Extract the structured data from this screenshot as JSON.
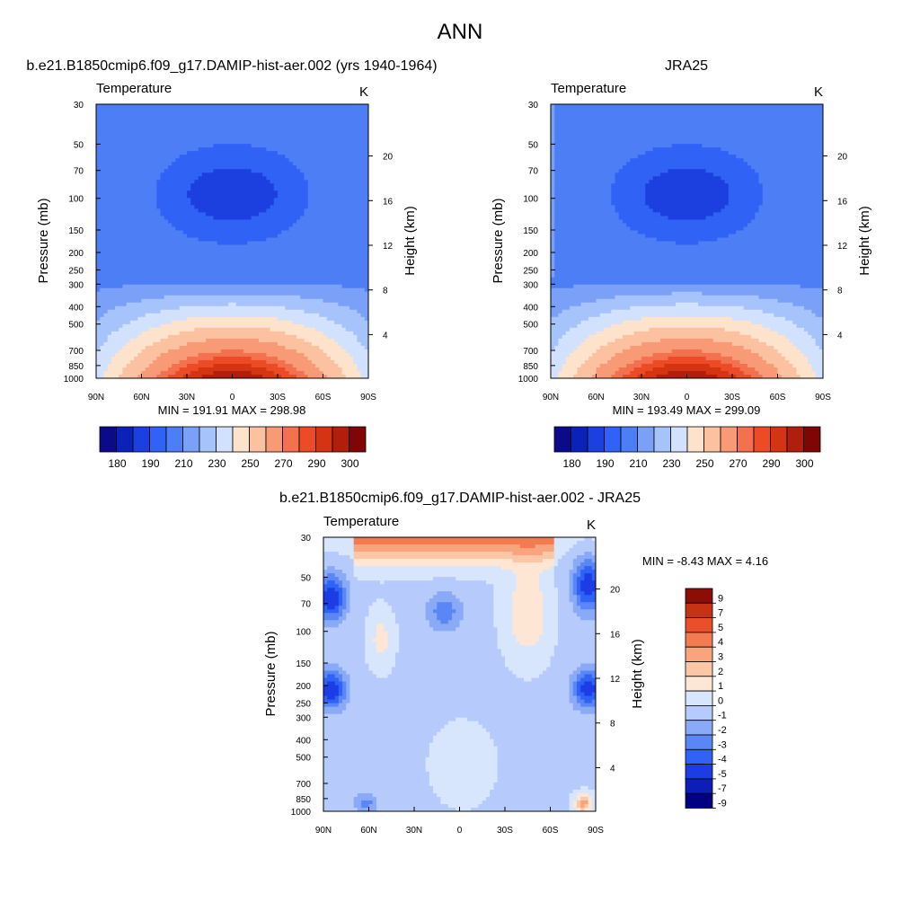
{
  "figure": {
    "title": "ANN"
  },
  "colors": {
    "abs_palette": [
      "#0a0a8a",
      "#0b22b8",
      "#1c3fe0",
      "#2f62f5",
      "#4d7ef5",
      "#7aa0f8",
      "#a7c3fb",
      "#d2e1fd",
      "#fde2cc",
      "#fbc1a1",
      "#f89a76",
      "#f47150",
      "#ec4b26",
      "#d43412",
      "#b01f0b",
      "#800606"
    ],
    "diff_palette": [
      "#000080",
      "#0d1db8",
      "#1c3de6",
      "#2f62f5",
      "#5a86f6",
      "#8aaaf8",
      "#b6cbfb",
      "#d8e6fd",
      "#fde6d4",
      "#fcc7a6",
      "#f8a47d",
      "#f27b52",
      "#e8502a",
      "#c63214",
      "#8c0c06"
    ]
  },
  "chart_data": [
    {
      "type": "heatmap",
      "title": "b.e21.B1850cmip6.f09_g17.DAMIP-hist-aer.002 (yrs 1940-1964)",
      "subtitle_left": "Temperature",
      "subtitle_right": "K",
      "xlabel": "",
      "ylabel": "Pressure (mb)",
      "ylabel_right": "Height (km)",
      "x_ticks": [
        "90N",
        "60N",
        "30N",
        "0",
        "30S",
        "60S",
        "90S"
      ],
      "y_ticks": [
        30,
        50,
        70,
        100,
        150,
        200,
        250,
        300,
        400,
        500,
        700,
        850,
        1000
      ],
      "y_scale": "log",
      "ylim": [
        1000,
        30
      ],
      "height_ticks": [
        4,
        8,
        12,
        16,
        20
      ],
      "min_max": "MIN = 191.91  MAX = 298.98",
      "colorbar": {
        "orientation": "horizontal",
        "labels": [
          "180",
          "190",
          "210",
          "230",
          "250",
          "270",
          "290",
          "300"
        ]
      }
    },
    {
      "type": "heatmap",
      "title": "JRA25",
      "subtitle_left": "Temperature",
      "subtitle_right": "K",
      "xlabel": "",
      "ylabel": "Pressure (mb)",
      "ylabel_right": "Height (km)",
      "x_ticks": [
        "90N",
        "60N",
        "30N",
        "0",
        "30S",
        "60S",
        "90S"
      ],
      "y_ticks": [
        30,
        50,
        70,
        100,
        150,
        200,
        250,
        300,
        400,
        500,
        700,
        850,
        1000
      ],
      "y_scale": "log",
      "ylim": [
        1000,
        30
      ],
      "height_ticks": [
        4,
        8,
        12,
        16,
        20
      ],
      "min_max": "MIN = 193.49  MAX = 299.09",
      "colorbar": {
        "orientation": "horizontal",
        "labels": [
          "180",
          "190",
          "210",
          "230",
          "250",
          "270",
          "290",
          "300"
        ]
      }
    },
    {
      "type": "heatmap",
      "title": "b.e21.B1850cmip6.f09_g17.DAMIP-hist-aer.002 - JRA25",
      "subtitle_left": "Temperature",
      "subtitle_right": "K",
      "xlabel": "",
      "ylabel": "Pressure (mb)",
      "ylabel_right": "Height (km)",
      "x_ticks": [
        "90N",
        "60N",
        "30N",
        "0",
        "30S",
        "60S",
        "90S"
      ],
      "y_ticks": [
        30,
        50,
        70,
        100,
        150,
        200,
        250,
        300,
        400,
        500,
        700,
        850,
        1000
      ],
      "y_scale": "log",
      "ylim": [
        1000,
        30
      ],
      "height_ticks": [
        4,
        8,
        12,
        16,
        20
      ],
      "min_max": "MIN =  -8.43  MAX =   4.16",
      "colorbar": {
        "orientation": "vertical",
        "labels": [
          "9",
          "7",
          "5",
          "4",
          "3",
          "2",
          "1",
          "0",
          "-1",
          "-2",
          "-3",
          "-4",
          "-5",
          "-7",
          "-9"
        ]
      }
    }
  ]
}
